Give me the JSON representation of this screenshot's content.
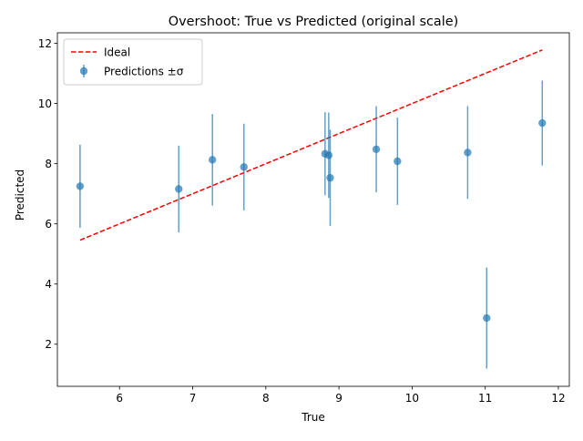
{
  "chart_data": {
    "type": "scatter",
    "title": "Overshoot: True vs Predicted (original scale)",
    "xlabel": "True",
    "ylabel": "Predicted",
    "xlim": [
      5.15,
      12.15
    ],
    "ylim": [
      0.6,
      12.35
    ],
    "xticks": [
      6,
      7,
      8,
      9,
      10,
      11,
      12
    ],
    "yticks": [
      2,
      4,
      6,
      8,
      10,
      12
    ],
    "grid": false,
    "legend_position": "top-left",
    "ideal": {
      "name": "Ideal",
      "color": "#ff0000",
      "x": [
        5.46,
        11.78
      ],
      "y": [
        5.46,
        11.78
      ]
    },
    "predictions": {
      "name": "Predictions ±σ",
      "color": "#1f77b4",
      "points": [
        {
          "x": 5.46,
          "y": 7.25,
          "err": 1.38
        },
        {
          "x": 6.81,
          "y": 7.16,
          "err": 1.44
        },
        {
          "x": 7.27,
          "y": 8.13,
          "err": 1.52
        },
        {
          "x": 7.7,
          "y": 7.89,
          "err": 1.44
        },
        {
          "x": 8.81,
          "y": 8.33,
          "err": 1.38
        },
        {
          "x": 8.86,
          "y": 8.28,
          "err": 1.42
        },
        {
          "x": 8.88,
          "y": 7.53,
          "err": 1.6
        },
        {
          "x": 9.51,
          "y": 8.48,
          "err": 1.43
        },
        {
          "x": 9.8,
          "y": 8.08,
          "err": 1.45
        },
        {
          "x": 10.76,
          "y": 8.37,
          "err": 1.54
        },
        {
          "x": 11.02,
          "y": 2.87,
          "err": 1.68
        },
        {
          "x": 11.78,
          "y": 9.35,
          "err": 1.41
        }
      ]
    }
  }
}
